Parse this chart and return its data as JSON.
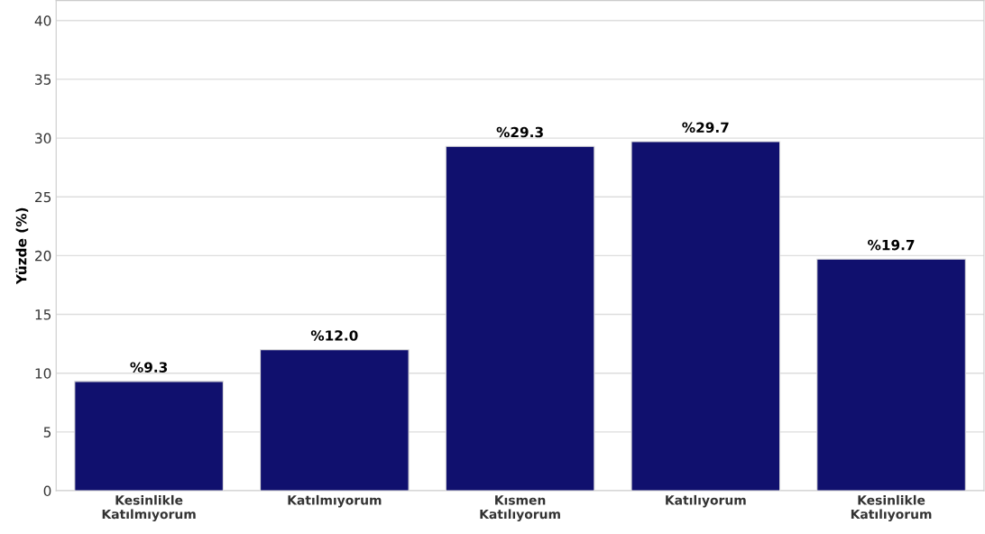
{
  "chart_data": {
    "type": "bar",
    "ylabel": "Yüzde (%)",
    "categories": [
      "Kesinlikle\nKatılmıyorum",
      "Katılmıyorum",
      "Kısmen\nKatılıyorum",
      "Katılıyorum",
      "Kesinlikle\nKatılıyorum"
    ],
    "values": [
      9.3,
      12.0,
      29.3,
      29.7,
      19.7
    ],
    "color": "#10106e",
    "value_labels": [
      "%9.3",
      "%12.0",
      "%29.3",
      "%29.7",
      "%19.7"
    ],
    "ylim": [
      0,
      41.7
    ],
    "yticks": [
      0,
      5,
      10,
      15,
      20,
      25,
      30,
      35,
      40
    ],
    "grid": "y"
  }
}
